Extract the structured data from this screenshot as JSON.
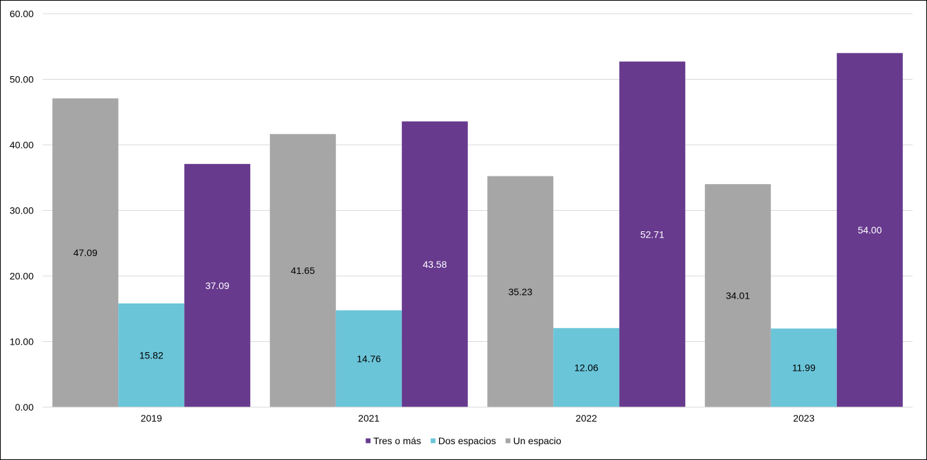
{
  "chart_data": {
    "type": "bar",
    "categories": [
      "2019",
      "2021",
      "2022",
      "2023"
    ],
    "series": [
      {
        "name": "Un espacio",
        "values": [
          47.09,
          41.65,
          35.23,
          34.01
        ],
        "color": "#a6a6a6",
        "label_color": "#000000"
      },
      {
        "name": "Dos espacios",
        "values": [
          15.82,
          14.76,
          12.06,
          11.99
        ],
        "color": "#6bc5d9",
        "label_color": "#000000"
      },
      {
        "name": "Tres o más",
        "values": [
          37.09,
          43.58,
          52.71,
          54.0
        ],
        "color": "#673a8e",
        "label_color": "#ffffff"
      }
    ],
    "data_labels": [
      [
        "47.09",
        "41.65",
        "35.23",
        "34.01"
      ],
      [
        "15.82",
        "14.76",
        "12.06",
        "11.99"
      ],
      [
        "37.09",
        "43.58",
        "52.71",
        "54.00"
      ]
    ],
    "y_ticks": [
      "0.00",
      "10.00",
      "20.00",
      "30.00",
      "40.00",
      "50.00",
      "60.00"
    ],
    "legend": [
      {
        "name": "Tres o más",
        "color": "#673a8e"
      },
      {
        "name": "Dos espacios",
        "color": "#6bc5d9"
      },
      {
        "name": "Un espacio",
        "color": "#a6a6a6"
      }
    ],
    "title": "",
    "xlabel": "",
    "ylabel": "",
    "ylim": [
      0,
      60
    ],
    "grid": true,
    "legend_position": "bottom"
  }
}
